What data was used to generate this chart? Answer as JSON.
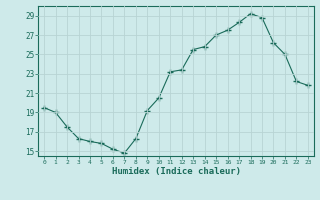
{
  "x": [
    0,
    1,
    2,
    3,
    4,
    5,
    6,
    7,
    8,
    9,
    10,
    11,
    12,
    13,
    14,
    15,
    16,
    17,
    18,
    19,
    20,
    21,
    22,
    23
  ],
  "y": [
    19.5,
    19.0,
    17.5,
    16.3,
    16.0,
    15.8,
    15.2,
    14.8,
    16.3,
    19.2,
    20.5,
    23.2,
    23.4,
    25.5,
    25.8,
    27.0,
    27.5,
    28.3,
    29.2,
    28.8,
    26.2,
    25.0,
    22.2,
    21.8
  ],
  "line_color": "#1a6b5a",
  "marker": "+",
  "marker_size": 4,
  "bg_color": "#ceeaea",
  "grid_color": "#b8d4d4",
  "xlabel": "Humidex (Indice chaleur)",
  "ylim": [
    14.5,
    30.0
  ],
  "yticks": [
    15,
    17,
    19,
    21,
    23,
    25,
    27,
    29
  ],
  "xticks": [
    0,
    1,
    2,
    3,
    4,
    5,
    6,
    7,
    8,
    9,
    10,
    11,
    12,
    13,
    14,
    15,
    16,
    17,
    18,
    19,
    20,
    21,
    22,
    23
  ],
  "tick_color": "#1a6b5a",
  "xlabel_color": "#1a6b5a"
}
